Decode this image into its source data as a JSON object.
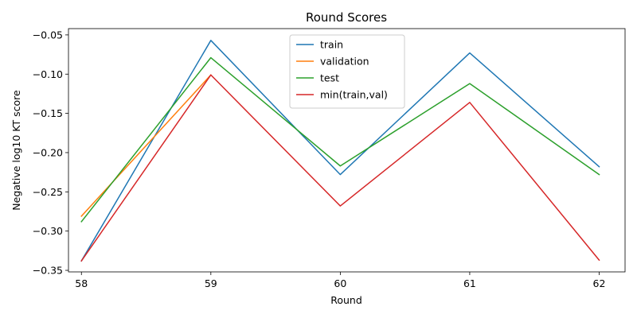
{
  "chart_data": {
    "type": "line",
    "title": "Round Scores",
    "xlabel": "Round",
    "ylabel": "Negative log10 KT score",
    "x": [
      58,
      59,
      60,
      61,
      62
    ],
    "xlim": [
      57.9,
      62.2
    ],
    "ylim": [
      -0.352,
      -0.042
    ],
    "x_ticks": [
      58,
      59,
      60,
      61,
      62
    ],
    "y_ticks": [
      -0.35,
      -0.3,
      -0.25,
      -0.2,
      -0.15,
      -0.1,
      -0.05
    ],
    "y_tick_labels": [
      "−0.35",
      "−0.30",
      "−0.25",
      "−0.20",
      "−0.15",
      "−0.10",
      "−0.05"
    ],
    "grid": false,
    "legend_position": "top-center",
    "series": [
      {
        "name": "train",
        "color": "#1f77b4",
        "values": [
          -0.338,
          -0.057,
          -0.228,
          -0.073,
          -0.218
        ]
      },
      {
        "name": "validation",
        "color": "#ff7f0e",
        "values": [
          -0.281,
          -0.101,
          null,
          null,
          null
        ]
      },
      {
        "name": "test",
        "color": "#2ca02c",
        "values": [
          -0.288,
          -0.079,
          -0.217,
          -0.112,
          -0.228
        ]
      },
      {
        "name": "min(train,val)",
        "color": "#d62728",
        "values": [
          -0.338,
          -0.101,
          -0.268,
          -0.136,
          -0.337
        ]
      }
    ]
  }
}
